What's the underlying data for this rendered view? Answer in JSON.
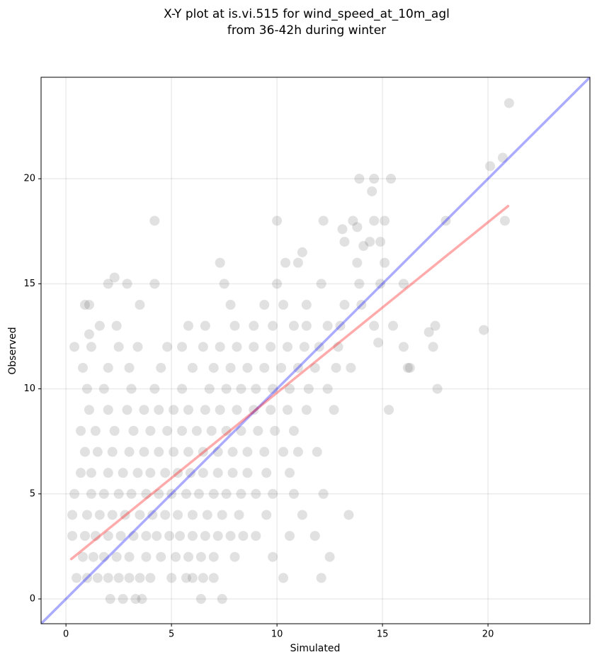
{
  "chart_data": {
    "type": "scatter",
    "title": [
      "X-Y plot at is.vi.515 for wind_speed_at_10m_agl",
      "from 36-42h during winter"
    ],
    "x_label": "Simulated",
    "y_label": "Observed",
    "xlim": [
      -1.18,
      24.83
    ],
    "ylim": [
      -1.18,
      24.83
    ],
    "xticks": [
      0,
      5,
      10,
      15,
      20
    ],
    "yticks": [
      0,
      5,
      10,
      15,
      20
    ],
    "grid": true,
    "point_color": "#333333",
    "points": [
      [
        2.1,
        0
      ],
      [
        2.7,
        0
      ],
      [
        3.3,
        0
      ],
      [
        3.6,
        0
      ],
      [
        6.4,
        0
      ],
      [
        7.4,
        0
      ],
      [
        0.5,
        1
      ],
      [
        1.0,
        1
      ],
      [
        1.5,
        1
      ],
      [
        2.0,
        1
      ],
      [
        2.5,
        1
      ],
      [
        3.0,
        1
      ],
      [
        3.5,
        1
      ],
      [
        4.0,
        1
      ],
      [
        5.0,
        1
      ],
      [
        5.7,
        1
      ],
      [
        6.0,
        1
      ],
      [
        6.5,
        1
      ],
      [
        7.0,
        1
      ],
      [
        10.3,
        1
      ],
      [
        12.1,
        1
      ],
      [
        0.8,
        2
      ],
      [
        1.3,
        2
      ],
      [
        1.8,
        2
      ],
      [
        2.4,
        2
      ],
      [
        3.0,
        2
      ],
      [
        3.8,
        2
      ],
      [
        4.5,
        2
      ],
      [
        5.2,
        2
      ],
      [
        5.8,
        2
      ],
      [
        6.4,
        2
      ],
      [
        7.0,
        2
      ],
      [
        8.0,
        2
      ],
      [
        9.8,
        2
      ],
      [
        12.5,
        2
      ],
      [
        0.3,
        3
      ],
      [
        0.9,
        3
      ],
      [
        1.4,
        3
      ],
      [
        2.0,
        3
      ],
      [
        2.6,
        3
      ],
      [
        3.2,
        3
      ],
      [
        3.8,
        3
      ],
      [
        4.3,
        3
      ],
      [
        4.9,
        3
      ],
      [
        5.4,
        3
      ],
      [
        6.0,
        3
      ],
      [
        6.6,
        3
      ],
      [
        7.2,
        3
      ],
      [
        7.8,
        3
      ],
      [
        8.4,
        3
      ],
      [
        9.0,
        3
      ],
      [
        10.6,
        3
      ],
      [
        11.8,
        3
      ],
      [
        0.3,
        4
      ],
      [
        1.0,
        4
      ],
      [
        1.6,
        4
      ],
      [
        2.2,
        4
      ],
      [
        2.8,
        4
      ],
      [
        3.5,
        4
      ],
      [
        4.1,
        4
      ],
      [
        4.7,
        4
      ],
      [
        5.3,
        4
      ],
      [
        6.0,
        4
      ],
      [
        6.7,
        4
      ],
      [
        7.4,
        4
      ],
      [
        8.2,
        4
      ],
      [
        9.5,
        4
      ],
      [
        11.2,
        4
      ],
      [
        13.4,
        4
      ],
      [
        0.4,
        5
      ],
      [
        1.2,
        5
      ],
      [
        1.8,
        5
      ],
      [
        2.5,
        5
      ],
      [
        3.1,
        5
      ],
      [
        3.8,
        5
      ],
      [
        4.4,
        5
      ],
      [
        5.0,
        5
      ],
      [
        5.7,
        5
      ],
      [
        6.3,
        5
      ],
      [
        7.0,
        5
      ],
      [
        7.6,
        5
      ],
      [
        8.3,
        5
      ],
      [
        9.0,
        5
      ],
      [
        9.8,
        5
      ],
      [
        10.8,
        5
      ],
      [
        12.2,
        5
      ],
      [
        0.7,
        6
      ],
      [
        1.2,
        6
      ],
      [
        2.0,
        6
      ],
      [
        2.7,
        6
      ],
      [
        3.4,
        6
      ],
      [
        4.0,
        6
      ],
      [
        4.7,
        6
      ],
      [
        5.3,
        6
      ],
      [
        5.9,
        6
      ],
      [
        6.5,
        6
      ],
      [
        7.2,
        6
      ],
      [
        7.9,
        6
      ],
      [
        8.6,
        6
      ],
      [
        9.5,
        6
      ],
      [
        10.6,
        6
      ],
      [
        0.9,
        7
      ],
      [
        1.5,
        7
      ],
      [
        2.2,
        7
      ],
      [
        3.0,
        7
      ],
      [
        3.7,
        7
      ],
      [
        4.4,
        7
      ],
      [
        5.1,
        7
      ],
      [
        5.8,
        7
      ],
      [
        6.5,
        7
      ],
      [
        7.2,
        7
      ],
      [
        7.9,
        7
      ],
      [
        8.6,
        7
      ],
      [
        9.4,
        7
      ],
      [
        10.3,
        7
      ],
      [
        11.0,
        7
      ],
      [
        11.9,
        7
      ],
      [
        0.7,
        8
      ],
      [
        1.4,
        8
      ],
      [
        2.3,
        8
      ],
      [
        3.2,
        8
      ],
      [
        4.0,
        8
      ],
      [
        4.8,
        8
      ],
      [
        5.5,
        8
      ],
      [
        6.2,
        8
      ],
      [
        6.9,
        8
      ],
      [
        7.6,
        8
      ],
      [
        8.3,
        8
      ],
      [
        9.1,
        8
      ],
      [
        9.9,
        8
      ],
      [
        10.8,
        8
      ],
      [
        1.1,
        9
      ],
      [
        2.0,
        9
      ],
      [
        2.9,
        9
      ],
      [
        3.7,
        9
      ],
      [
        4.4,
        9
      ],
      [
        5.1,
        9
      ],
      [
        5.8,
        9
      ],
      [
        6.6,
        9
      ],
      [
        7.3,
        9
      ],
      [
        8.1,
        9
      ],
      [
        8.9,
        9
      ],
      [
        9.7,
        9
      ],
      [
        10.5,
        9
      ],
      [
        11.4,
        9
      ],
      [
        12.7,
        9
      ],
      [
        15.3,
        9
      ],
      [
        1.0,
        10
      ],
      [
        1.8,
        10
      ],
      [
        3.1,
        10
      ],
      [
        4.2,
        10
      ],
      [
        5.5,
        10
      ],
      [
        6.8,
        10
      ],
      [
        7.6,
        10
      ],
      [
        8.3,
        10
      ],
      [
        9.0,
        10
      ],
      [
        9.8,
        10
      ],
      [
        10.6,
        10
      ],
      [
        11.5,
        10
      ],
      [
        12.4,
        10
      ],
      [
        17.6,
        10
      ],
      [
        0.8,
        11
      ],
      [
        2.0,
        11
      ],
      [
        3.0,
        11
      ],
      [
        4.5,
        11
      ],
      [
        6.0,
        11
      ],
      [
        7.0,
        11
      ],
      [
        7.8,
        11
      ],
      [
        8.6,
        11
      ],
      [
        9.4,
        11
      ],
      [
        10.2,
        11
      ],
      [
        11.0,
        11
      ],
      [
        11.8,
        11
      ],
      [
        12.8,
        11
      ],
      [
        13.5,
        11
      ],
      [
        16.2,
        11
      ],
      [
        0.4,
        12
      ],
      [
        1.2,
        12
      ],
      [
        2.5,
        12
      ],
      [
        3.4,
        12
      ],
      [
        4.8,
        12
      ],
      [
        5.5,
        12
      ],
      [
        6.5,
        12
      ],
      [
        7.3,
        12
      ],
      [
        8.1,
        12
      ],
      [
        8.9,
        12
      ],
      [
        9.7,
        12
      ],
      [
        10.5,
        12
      ],
      [
        11.3,
        12
      ],
      [
        12.0,
        12
      ],
      [
        12.9,
        12
      ],
      [
        16.0,
        12
      ],
      [
        17.4,
        12
      ],
      [
        1.6,
        13
      ],
      [
        2.4,
        13
      ],
      [
        5.8,
        13
      ],
      [
        6.6,
        13
      ],
      [
        8.0,
        13
      ],
      [
        8.9,
        13
      ],
      [
        9.8,
        13
      ],
      [
        10.8,
        13
      ],
      [
        11.4,
        13
      ],
      [
        12.4,
        13
      ],
      [
        13.0,
        13
      ],
      [
        14.6,
        13
      ],
      [
        15.5,
        13
      ],
      [
        17.5,
        13
      ],
      [
        0.9,
        14
      ],
      [
        1.1,
        14
      ],
      [
        3.5,
        14
      ],
      [
        7.8,
        14
      ],
      [
        9.4,
        14
      ],
      [
        10.3,
        14
      ],
      [
        11.4,
        14
      ],
      [
        13.2,
        14
      ],
      [
        14.0,
        14
      ],
      [
        2.0,
        15
      ],
      [
        2.9,
        15
      ],
      [
        4.2,
        15
      ],
      [
        7.5,
        15
      ],
      [
        10.0,
        15
      ],
      [
        12.1,
        15
      ],
      [
        13.9,
        15
      ],
      [
        14.9,
        15
      ],
      [
        16.0,
        15
      ],
      [
        7.3,
        16
      ],
      [
        10.4,
        16
      ],
      [
        11.0,
        16
      ],
      [
        13.8,
        16
      ],
      [
        15.1,
        16
      ],
      [
        13.2,
        17
      ],
      [
        14.4,
        17
      ],
      [
        14.9,
        17
      ],
      [
        4.2,
        18
      ],
      [
        10.0,
        18
      ],
      [
        12.2,
        18
      ],
      [
        13.6,
        18
      ],
      [
        14.6,
        18
      ],
      [
        15.1,
        18
      ],
      [
        18.0,
        18
      ],
      [
        20.8,
        18
      ],
      [
        2.3,
        15.3
      ],
      [
        1.1,
        12.6
      ],
      [
        11.2,
        16.5
      ],
      [
        13.1,
        17.6
      ],
      [
        13.8,
        17.7
      ],
      [
        14.1,
        16.8
      ],
      [
        14.5,
        19.4
      ],
      [
        13.9,
        20.0
      ],
      [
        14.6,
        20.0
      ],
      [
        15.4,
        20.0
      ],
      [
        20.1,
        20.6
      ],
      [
        20.7,
        21.0
      ],
      [
        21.0,
        23.6
      ],
      [
        19.8,
        12.8
      ],
      [
        17.2,
        12.7
      ],
      [
        16.3,
        11.0
      ],
      [
        14.8,
        12.2
      ]
    ],
    "lines": [
      {
        "color": "#0000ff",
        "x": [
          -1.18,
          24.83
        ],
        "y": [
          -1.18,
          24.83
        ]
      },
      {
        "color": "#ff0000",
        "x": [
          0.25,
          20.95
        ],
        "y": [
          1.9,
          18.7
        ]
      }
    ]
  }
}
